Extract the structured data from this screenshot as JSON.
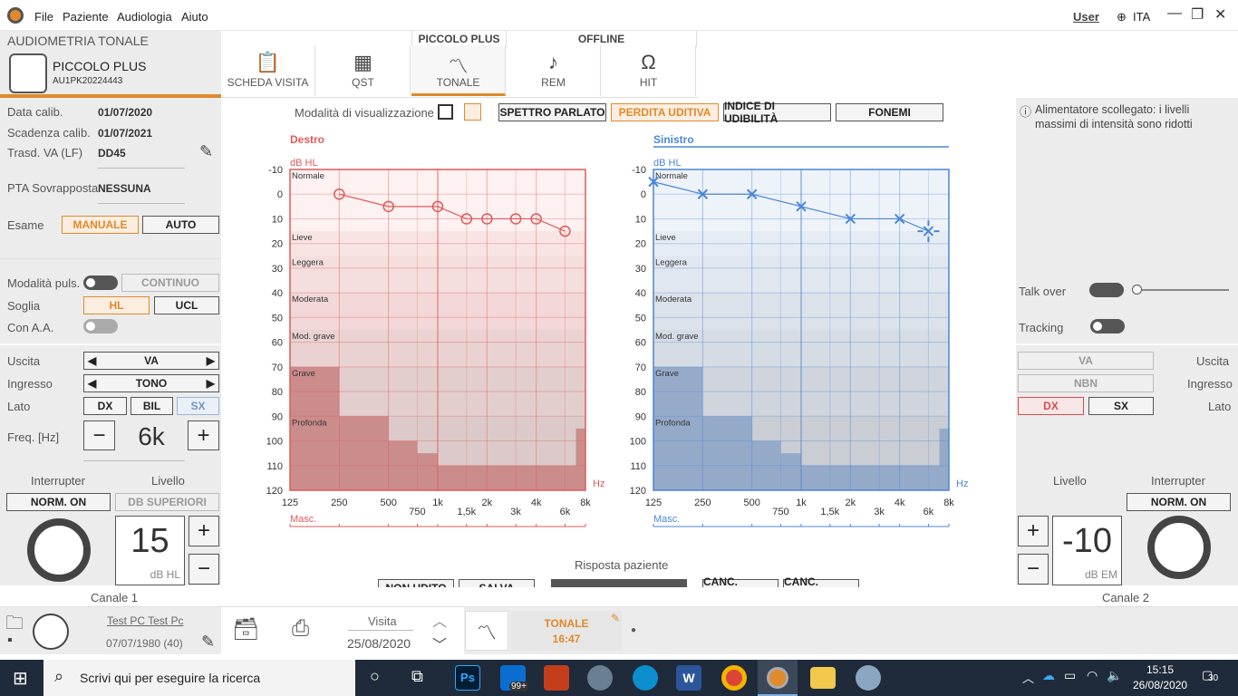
{
  "titlebar": {
    "menu": [
      "File",
      "Paziente",
      "Audiologia",
      "Aiuto"
    ],
    "user": "User",
    "lang": "ITA"
  },
  "device": {
    "section": "AUDIOMETRIA TONALE",
    "name": "PICCOLO PLUS",
    "serial": "AU1PK20224443"
  },
  "tabs": {
    "group1": "PICCOLO PLUS",
    "group2": "OFFLINE",
    "items": [
      "SCHEDA VISITA",
      "QST",
      "TONALE",
      "REM",
      "HIT"
    ],
    "active": "TONALE"
  },
  "left": {
    "calib_label": "Data calib.",
    "calib_value": "01/07/2020",
    "scad_label": "Scadenza calib.",
    "scad_value": "01/07/2021",
    "trasd_label": "Trasd. VA (LF)",
    "trasd_value": "DD45",
    "pta_label": "PTA Sovrapposta",
    "pta_value": "NESSUNA",
    "esame_label": "Esame",
    "manuale": "MANUALE",
    "auto": "AUTO",
    "modpuls_label": "Modalità puls.",
    "continuo": "CONTINUO",
    "soglia_label": "Soglia",
    "hl": "HL",
    "ucl": "UCL",
    "conaa_label": "Con A.A.",
    "uscita_label": "Uscita",
    "uscita_value": "VA",
    "ingresso_label": "Ingresso",
    "ingresso_value": "TONO",
    "lato_label": "Lato",
    "dx": "DX",
    "bil": "BIL",
    "sx": "SX",
    "freq_label": "Freq. [Hz]",
    "freq_value": "6k",
    "minus": "−",
    "plus": "+",
    "interrupter_label": "Interrupter",
    "livello_label": "Livello",
    "norm_on": "NORM. ON",
    "db_sup": "DB SUPERIORI",
    "level_value": "15",
    "level_unit": "dB HL",
    "channel": "Canale 1"
  },
  "right": {
    "info": "Alimentatore scollegato: i livelli massimi di intensità sono ridotti",
    "talkover_label": "Talk over",
    "tracking_label": "Tracking",
    "uscita_label": "Uscita",
    "uscita_value": "VA",
    "ingresso_label": "Ingresso",
    "ingresso_value": "NBN",
    "lato_label": "Lato",
    "dx": "DX",
    "sx": "SX",
    "livello_label": "Livello",
    "interrupter_label": "Interrupter",
    "norm_on": "NORM. ON",
    "level_value": "-10",
    "level_unit": "dB EM",
    "plus": "+",
    "minus": "−",
    "channel": "Canale 2"
  },
  "viewbar": {
    "label": "Modalità di visualizzazione",
    "buttons": [
      "SPETTRO PARLATO",
      "PERDITA UDITIVA",
      "INDICE DI UDIBILITÀ",
      "FONEMI"
    ],
    "active": "PERDITA UDITIVA"
  },
  "chart_data": [
    {
      "type": "line",
      "title": "Destro",
      "ylabel": "dB HL",
      "xlabel": "Hz",
      "xscale": "log",
      "ylim": [
        -10,
        120
      ],
      "yreversed": true,
      "x_ticks": [
        "125",
        "250",
        "500",
        "750",
        "1k",
        "1,5k",
        "2k",
        "3k",
        "4k",
        "6k",
        "8k"
      ],
      "y_ticks": [
        -10,
        0,
        10,
        20,
        30,
        40,
        50,
        60,
        70,
        80,
        90,
        100,
        110,
        120
      ],
      "bands": [
        "Normale",
        "Lieve",
        "Leggera",
        "Moderata",
        "Mod. grave",
        "Grave",
        "Profonda"
      ],
      "masking_label": "Masc.",
      "color": "#e05a5a",
      "marker": "circle",
      "series": [
        {
          "x": [
            250,
            500,
            1000,
            1500,
            2000,
            3000,
            4000,
            6000
          ],
          "y": [
            0,
            5,
            5,
            10,
            10,
            10,
            10,
            15
          ]
        }
      ]
    },
    {
      "type": "line",
      "title": "Sinistro",
      "ylabel": "dB HL",
      "xlabel": "Hz",
      "xscale": "log",
      "ylim": [
        -10,
        120
      ],
      "yreversed": true,
      "x_ticks": [
        "125",
        "250",
        "500",
        "750",
        "1k",
        "1,5k",
        "2k",
        "3k",
        "4k",
        "6k",
        "8k"
      ],
      "y_ticks": [
        -10,
        0,
        10,
        20,
        30,
        40,
        50,
        60,
        70,
        80,
        90,
        100,
        110,
        120
      ],
      "bands": [
        "Normale",
        "Lieve",
        "Leggera",
        "Moderata",
        "Mod. grave",
        "Grave",
        "Profonda"
      ],
      "masking_label": "Masc.",
      "color": "#4a86d8",
      "marker": "cross",
      "series": [
        {
          "x": [
            125,
            250,
            500,
            1000,
            2000,
            4000,
            6000
          ],
          "y": [
            -5,
            0,
            0,
            5,
            10,
            10,
            15
          ]
        }
      ],
      "cursor": {
        "x": 6000,
        "y": 15
      }
    }
  ],
  "response": {
    "label": "Risposta paziente",
    "buttons": [
      "NON UDITO",
      "SALVA",
      "CANC. PUNTO",
      "CANC. TRACCIA"
    ]
  },
  "bottom": {
    "patient": "Test PC Test Pc",
    "dob": "07/07/1980 (40)",
    "visita_label": "Visita",
    "visita_date": "25/08/2020",
    "test_name": "TONALE",
    "test_time": "16:47"
  },
  "taskbar": {
    "search": "Scrivi qui per eseguire la ricerca",
    "time": "15:15",
    "date": "26/08/2020",
    "mail_badge": "99+",
    "notif": "30"
  }
}
